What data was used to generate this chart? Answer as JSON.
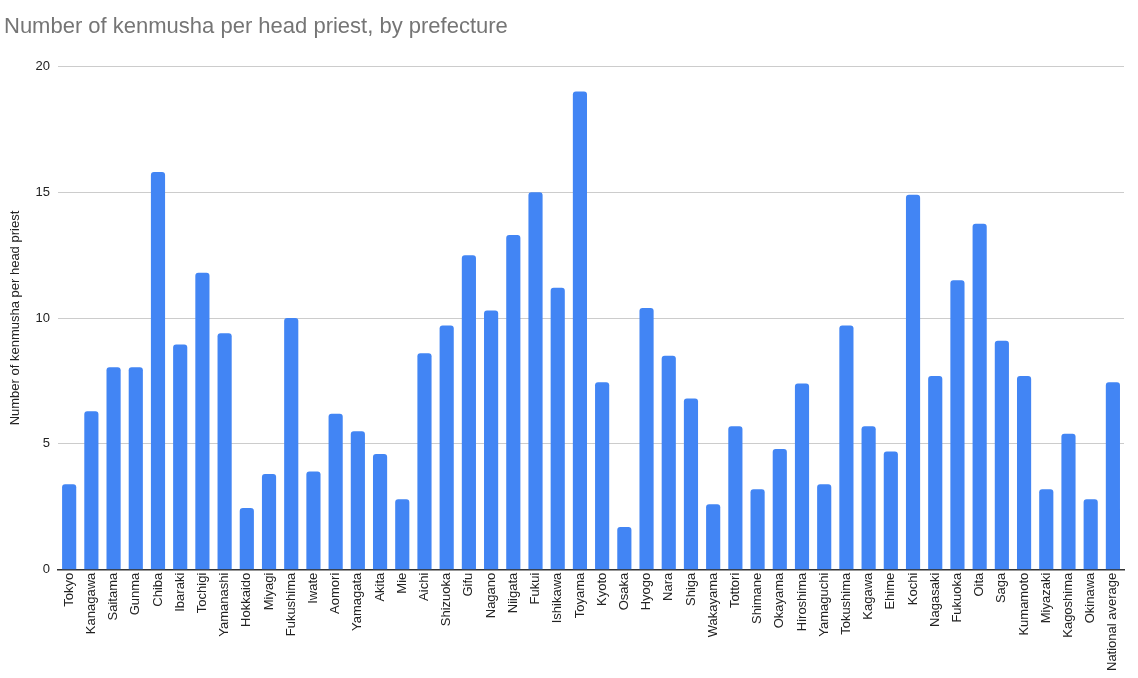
{
  "chart_data": {
    "type": "bar",
    "title": "Number of kenmusha per head priest, by prefecture",
    "ylabel": "Number of kenmusha per head priest",
    "categories": [
      "Tokyo",
      "Kanagawa",
      "Saitama",
      "Gunma",
      "Chiba",
      "Ibaraki",
      "Tochigi",
      "Yamanashi",
      "Hokkaido",
      "Miyagi",
      "Fukushima",
      "Iwate",
      "Aomori",
      "Yamagata",
      "Akita",
      "Mie",
      "Aichi",
      "Shizuoka",
      "Gifu",
      "Nagano",
      "Niigata",
      "Fukui",
      "Ishikawa",
      "Toyama",
      "Kyoto",
      "Osaka",
      "Hyogo",
      "Nara",
      "Shiga",
      "Wakayama",
      "Tottori",
      "Shimane",
      "Okayama",
      "Hiroshima",
      "Yamaguchi",
      "Tokushima",
      "Kagawa",
      "Ehime",
      "Kochi",
      "Nagasaki",
      "Fukuoka",
      "Oita",
      "Saga",
      "Kumamoto",
      "Miyazaki",
      "Kagoshima",
      "Okinawa",
      "National average"
    ],
    "values": [
      3.4,
      6.3,
      8.05,
      8.05,
      15.8,
      8.95,
      11.8,
      9.4,
      2.45,
      3.8,
      10,
      3.9,
      6.2,
      5.5,
      4.6,
      2.8,
      8.6,
      9.7,
      12.5,
      10.3,
      13.3,
      15,
      11.2,
      19,
      7.45,
      1.7,
      10.4,
      8.5,
      6.8,
      2.6,
      5.7,
      3.2,
      4.8,
      7.4,
      3.4,
      9.7,
      5.7,
      4.7,
      14.9,
      7.7,
      11.5,
      13.75,
      9.1,
      7.7,
      3.2,
      5.4,
      2.8,
      7.45
    ],
    "color": "#4285f4",
    "ylim": [
      0,
      20
    ],
    "yticks": [
      0,
      5,
      10,
      15,
      20
    ],
    "grid": "y",
    "legend": false
  }
}
